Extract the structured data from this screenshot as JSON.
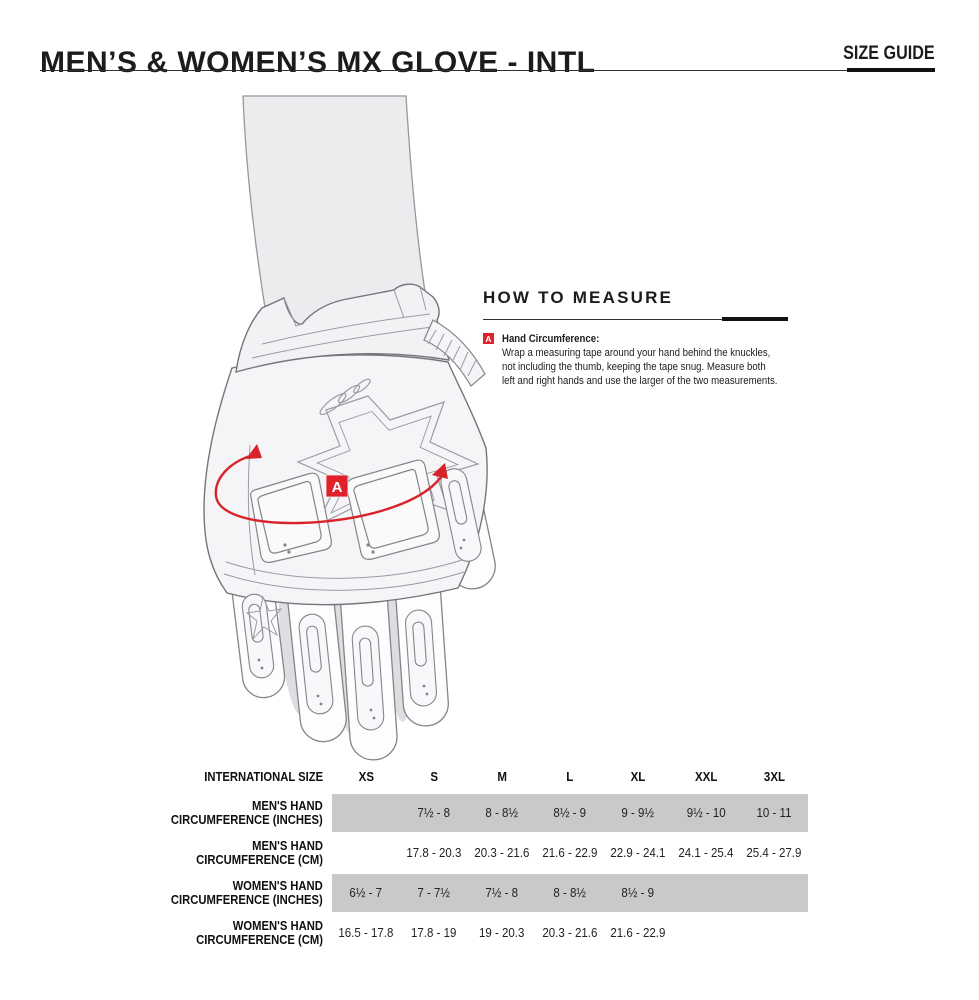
{
  "header": {
    "title": "MEN’S & WOMEN’S MX GLOVE - INTL",
    "size_guide_label": "SIZE GUIDE"
  },
  "how_to_measure": {
    "heading": "HOW TO MEASURE",
    "marker": "A",
    "item_title": "Hand Circumference:",
    "line1": "Wrap a measuring tape around your hand behind the knuckles,",
    "line2": "not including the thumb, keeping the tape snug. Measure both",
    "line3": "left and right hands and use the larger of the two measurements."
  },
  "glove": {
    "marker_label": "A"
  },
  "colors": {
    "accent_red": "#e1212a",
    "band_gray": "#c9c9c9",
    "line_art_gray": "#85858c",
    "text_dark": "#1c1c1e"
  },
  "size_table": {
    "columns": [
      "INTERNATIONAL SIZE",
      "XS",
      "S",
      "M",
      "L",
      "XL",
      "XXL",
      "3XL"
    ],
    "rows": [
      {
        "label1": "MEN'S HAND",
        "label2": "CIRCUMFERENCE (INCHES)",
        "shaded": true,
        "values": [
          "",
          "7½ - 8",
          "8 - 8½",
          "8½ - 9",
          "9 - 9½",
          "9½ - 10",
          "10 - 11"
        ]
      },
      {
        "label1": "MEN'S HAND",
        "label2": "CIRCUMFERENCE (CM)",
        "shaded": false,
        "values": [
          "",
          "17.8 - 20.3",
          "20.3 - 21.6",
          "21.6 - 22.9",
          "22.9 - 24.1",
          "24.1 - 25.4",
          "25.4 - 27.9"
        ]
      },
      {
        "label1": "WOMEN'S HAND",
        "label2": "CIRCUMFERENCE (INCHES)",
        "shaded": true,
        "values": [
          "6½ - 7",
          "7 - 7½",
          "7½ - 8",
          "8 - 8½",
          "8½ - 9",
          "",
          ""
        ]
      },
      {
        "label1": "WOMEN'S HAND",
        "label2": "CIRCUMFERENCE (CM)",
        "shaded": false,
        "values": [
          "16.5 - 17.8",
          "17.8 - 19",
          "19 - 20.3",
          "20.3 - 21.6",
          "21.6 - 22.9",
          "",
          ""
        ]
      }
    ]
  }
}
